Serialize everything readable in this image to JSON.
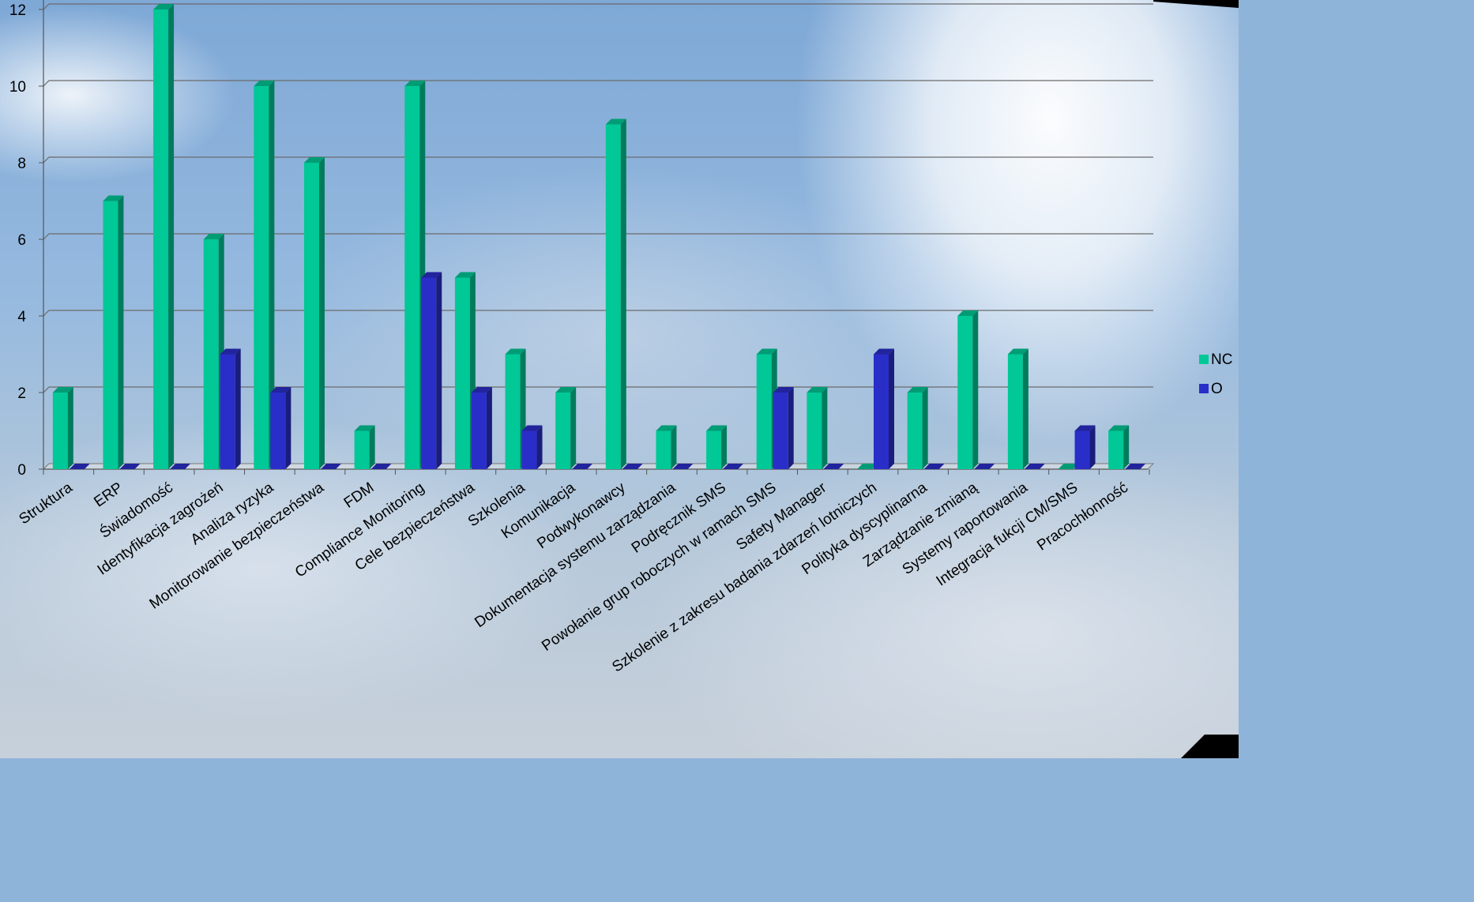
{
  "chart_data": {
    "type": "bar",
    "title": "",
    "xlabel": "",
    "ylabel": "",
    "ylim": [
      0,
      12
    ],
    "yticks": [
      0,
      2,
      4,
      6,
      8,
      10,
      12
    ],
    "grid": true,
    "legend_position": "right",
    "categories": [
      "Struktura",
      "ERP",
      "Świadomość",
      "Identyfikacja zagrożeń",
      "Analiza ryzyka",
      "Monitorowanie bezpieczeństwa",
      "FDM",
      "Compliance Monitoring",
      "Cele bezpieczeństwa",
      "Szkolenia",
      "Komunikacja",
      "Podwykonawcy",
      "Dokumentacja systemu zarządzania",
      "Podręcznik SMS",
      "Powołanie grup roboczych w ramach SMS",
      "Safety Manager",
      "Szkolenie z zakresu badania zdarzeń lotniczych",
      "Polityka dyscyplinarna",
      "Zarządzanie zmianą",
      "Systemy raportowania",
      "Integracja fukcji CM/SMS",
      "Pracochłonność"
    ],
    "series": [
      {
        "name": "NC",
        "color": "#00c896",
        "values": [
          2,
          7,
          12,
          6,
          10,
          8,
          1,
          10,
          5,
          3,
          2,
          9,
          1,
          1,
          3,
          2,
          0,
          2,
          4,
          3,
          0,
          1
        ]
      },
      {
        "name": "O",
        "color": "#2a2ec8",
        "values": [
          0,
          0,
          0,
          3,
          2,
          0,
          0,
          5,
          2,
          1,
          0,
          0,
          0,
          0,
          2,
          0,
          3,
          0,
          0,
          0,
          1,
          0
        ]
      }
    ]
  }
}
